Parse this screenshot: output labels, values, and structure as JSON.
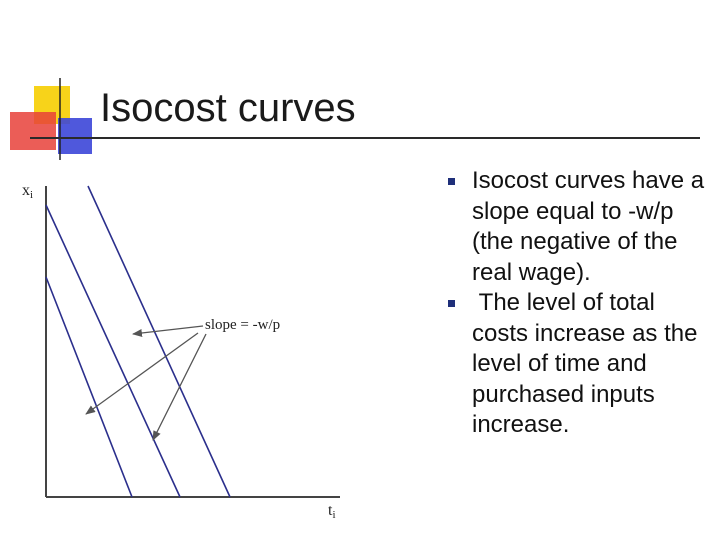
{
  "slide": {
    "title": "Isocost curves",
    "bullets": [
      "Isocost curves have a slope equal to -w/p (the negative of the real wage).",
      " The level of total costs increase as the level of time and purchased inputs increase."
    ],
    "colors": {
      "logo_yellow": "#f7d31a",
      "logo_red": "#e8413a",
      "logo_blue": "#3c46d8",
      "bullet": "#1f2f7a",
      "isocost_line": "#2b2f8c"
    },
    "bullet_icon": "square-bullet-icon"
  },
  "figure": {
    "y_axis_label": "x",
    "y_axis_subscript": "i",
    "x_axis_label": "t",
    "x_axis_subscript": "i",
    "annotation": "slope = -w/p"
  }
}
